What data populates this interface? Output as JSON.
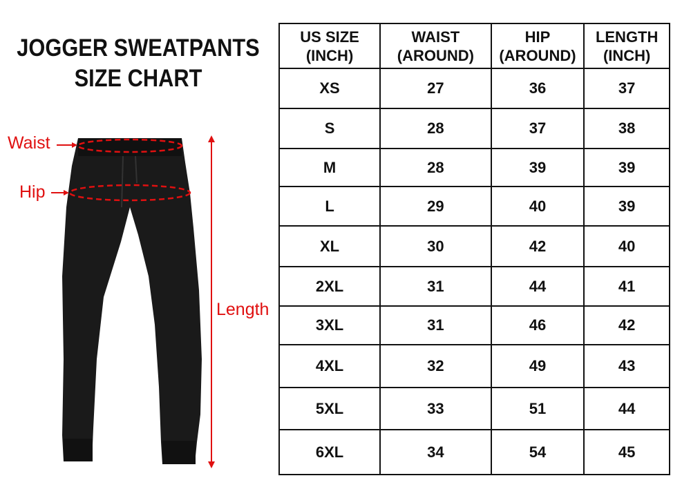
{
  "title_line1": "JOGGER SWEATPANTS",
  "title_line2": "SIZE CHART",
  "annotations": {
    "waist": "Waist",
    "hip": "Hip",
    "length": "Length"
  },
  "accent_color": "#e01010",
  "table": {
    "headers": [
      {
        "line1": "US SIZE",
        "line2": "(INCH)"
      },
      {
        "line1": "WAIST",
        "line2": "(AROUND)"
      },
      {
        "line1": "HIP",
        "line2": "(AROUND)"
      },
      {
        "line1": "LENGTH",
        "line2": "(INCH)"
      }
    ],
    "rows": [
      [
        "XS",
        "27",
        "36",
        "37"
      ],
      [
        "S",
        "28",
        "37",
        "38"
      ],
      [
        "M",
        "28",
        "39",
        "39"
      ],
      [
        "L",
        "29",
        "40",
        "39"
      ],
      [
        "XL",
        "30",
        "42",
        "40"
      ],
      [
        "2XL",
        "31",
        "44",
        "41"
      ],
      [
        "3XL",
        "31",
        "46",
        "42"
      ],
      [
        "4XL",
        "32",
        "49",
        "43"
      ],
      [
        "5XL",
        "33",
        "51",
        "44"
      ],
      [
        "6XL",
        "34",
        "54",
        "45"
      ]
    ]
  }
}
